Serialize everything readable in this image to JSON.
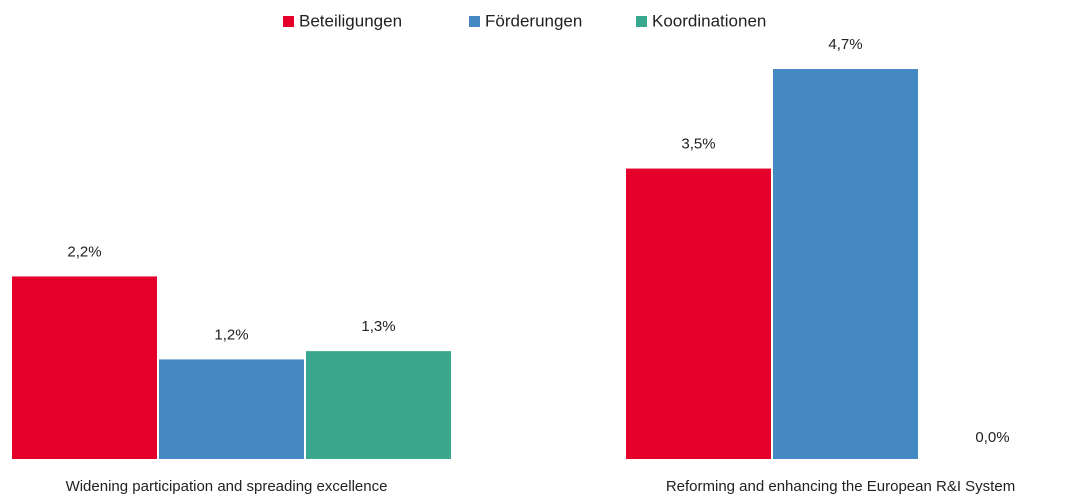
{
  "chart_data": {
    "type": "bar",
    "categories": [
      "Widening participation and spreading excellence",
      "Reforming and enhancing the European R&I System"
    ],
    "series": [
      {
        "name": "Beteiligungen",
        "color": "#e4002b",
        "values": [
          2.2,
          3.5
        ],
        "value_labels": [
          "2,2%",
          "3,5%"
        ]
      },
      {
        "name": "Förderungen",
        "color": "#4589c2",
        "values": [
          1.2,
          4.7
        ],
        "value_labels": [
          "1,2%",
          "4,7%"
        ]
      },
      {
        "name": "Koordinationen",
        "color": "#3aa88f",
        "values": [
          1.3,
          0.0
        ],
        "value_labels": [
          "1,3%",
          "0,0%"
        ]
      }
    ],
    "legend": "top"
  }
}
